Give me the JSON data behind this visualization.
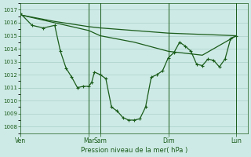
{
  "bg_color": "#ceeae6",
  "grid_color": "#aacfca",
  "line_color": "#1a5c1a",
  "marker_color": "#1a5c1a",
  "xlabel": "Pression niveau de la mer( hPa )",
  "xlabel_color": "#1a5c1a",
  "tick_color": "#1a5c1a",
  "ylim": [
    1007.5,
    1017.5
  ],
  "yticks": [
    1008,
    1009,
    1010,
    1011,
    1012,
    1013,
    1014,
    1015,
    1016,
    1017
  ],
  "xtick_labels": [
    "Ven",
    "Mar",
    "Sam",
    "Dim",
    "Lun"
  ],
  "xtick_positions": [
    0,
    12,
    14,
    26,
    38
  ],
  "vline_positions": [
    12,
    14,
    26,
    38
  ],
  "xlim": [
    0,
    40
  ],
  "series1": {
    "x": [
      0,
      6,
      12,
      14,
      20,
      26,
      32,
      38
    ],
    "y": [
      1016.6,
      1016.1,
      1015.7,
      1015.6,
      1015.4,
      1015.2,
      1015.1,
      1015.0
    ]
  },
  "series2": {
    "x": [
      0,
      6,
      12,
      14,
      20,
      26,
      32,
      38
    ],
    "y": [
      1016.6,
      1016.0,
      1015.4,
      1015.0,
      1014.5,
      1013.8,
      1013.5,
      1015.0
    ]
  },
  "series3_x": [
    0,
    2,
    4,
    6,
    7,
    8,
    9,
    10,
    11,
    12,
    12.5,
    13,
    14,
    15,
    16,
    17,
    18,
    19,
    20,
    21,
    22,
    23,
    24,
    25,
    26,
    27,
    28,
    29,
    30,
    31,
    32,
    33,
    34,
    35,
    36,
    37,
    38
  ],
  "series3_y": [
    1016.7,
    1015.8,
    1015.6,
    1015.8,
    1013.8,
    1012.5,
    1011.8,
    1011.0,
    1011.1,
    1011.1,
    1011.4,
    1012.2,
    1012.0,
    1011.7,
    1009.5,
    1009.2,
    1008.7,
    1008.5,
    1008.5,
    1008.6,
    1009.5,
    1011.8,
    1012.0,
    1012.3,
    1013.3,
    1013.7,
    1014.5,
    1014.2,
    1013.8,
    1012.8,
    1012.7,
    1013.2,
    1013.1,
    1012.6,
    1013.2,
    1014.8,
    1015.0
  ]
}
